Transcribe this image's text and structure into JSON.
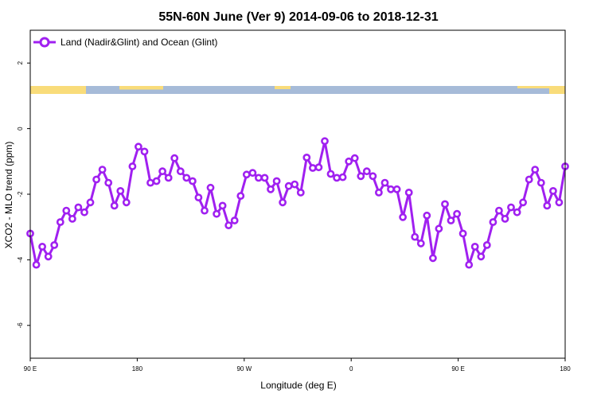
{
  "chart_data": {
    "type": "line",
    "title": "55N-60N June (Ver 9)   2014-09-06 to 2018-12-31",
    "xlabel": "Longitude (deg E)",
    "ylabel": "XCO2 - MLO trend (ppm)",
    "xlim": [
      90,
      450
    ],
    "ylim": [
      -7,
      3
    ],
    "x_ticks": [
      {
        "value": 90,
        "label": "90 E"
      },
      {
        "value": 180,
        "label": "180"
      },
      {
        "value": 270,
        "label": "90 W"
      },
      {
        "value": 360,
        "label": "0"
      },
      {
        "value": 450,
        "label": "90 E"
      },
      {
        "value": 540,
        "label": "180"
      }
    ],
    "y_ticks": [
      {
        "value": 2,
        "label": "2"
      },
      {
        "value": 0,
        "label": "0"
      },
      {
        "value": -2,
        "label": "-2"
      },
      {
        "value": -4,
        "label": "-4"
      },
      {
        "value": -6,
        "label": "-6"
      }
    ],
    "legend_position": "top-left",
    "grid": false,
    "series": [
      {
        "name": "Land (Nadir&Glint) and Ocean (Glint)",
        "color": "#a020f0",
        "y": [
          -3.2,
          -4.15,
          -3.6,
          -3.9,
          -3.55,
          -2.85,
          -2.5,
          -2.75,
          -2.4,
          -2.55,
          -2.25,
          -1.55,
          -1.25,
          -1.65,
          -2.35,
          -1.9,
          -2.25,
          -1.15,
          -0.55,
          -0.7,
          -1.65,
          -1.6,
          -1.3,
          -1.5,
          -0.9,
          -1.3,
          -1.5,
          -1.6,
          -2.1,
          -2.5,
          -1.8,
          -2.6,
          -2.35,
          -2.95,
          -2.8,
          -2.05,
          -1.4,
          -1.35,
          -1.5,
          -1.5,
          -1.85,
          -1.6,
          -2.25,
          -1.75,
          -1.7,
          -1.95,
          -0.88,
          -1.2,
          -1.18,
          -0.38,
          -1.38,
          -1.5,
          -1.48,
          -1.0,
          -0.9,
          -1.45,
          -1.3,
          -1.45,
          -1.95,
          -1.65,
          -1.85,
          -1.85,
          -2.7,
          -1.95,
          -3.3,
          -3.5,
          -2.65,
          -3.95,
          -3.05,
          -2.3,
          -2.8,
          -2.6,
          -3.2,
          -4.15,
          -3.6,
          -3.9,
          -3.55,
          -2.85,
          -2.5,
          -2.75,
          -2.4,
          -2.55,
          -2.25,
          -1.55,
          -1.25,
          -1.65,
          -2.35,
          -1.9,
          -2.25,
          -1.15
        ]
      }
    ]
  },
  "surface_band": {
    "land_color": "#f9dc7a",
    "ocean_color": "#a6bbd8"
  }
}
